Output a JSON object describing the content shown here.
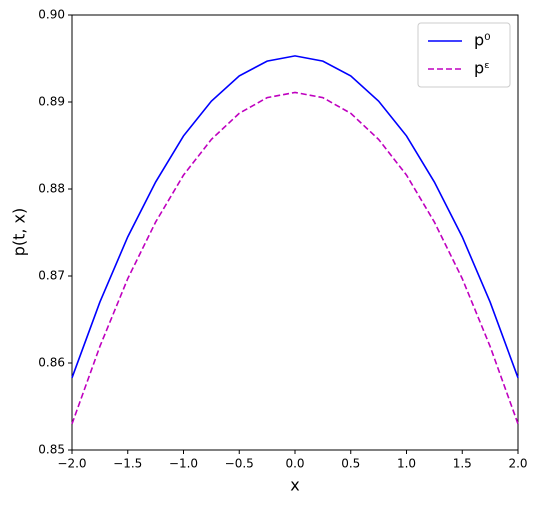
{
  "chart_data": {
    "type": "line",
    "xlabel": "x",
    "ylabel": "p(t, x)",
    "x": [
      -2,
      -1.75,
      -1.5,
      -1.25,
      -1,
      -0.75,
      -0.5,
      -0.25,
      0,
      0.25,
      0.5,
      0.75,
      1,
      1.25,
      1.5,
      1.75,
      2
    ],
    "series": [
      {
        "name": "p⁰",
        "color": "#0000ff",
        "style": "solid",
        "values": [
          0.8583,
          0.867,
          0.8745,
          0.8808,
          0.8861,
          0.8901,
          0.893,
          0.8947,
          0.8953,
          0.8947,
          0.893,
          0.8901,
          0.8861,
          0.8808,
          0.8745,
          0.867,
          0.8583
        ]
      },
      {
        "name": "pᵋ",
        "color": "#bf00bf",
        "style": "dashed",
        "values": [
          0.853,
          0.8619,
          0.8697,
          0.8762,
          0.8816,
          0.8857,
          0.8887,
          0.8905,
          0.8911,
          0.8905,
          0.8887,
          0.8857,
          0.8816,
          0.8762,
          0.8697,
          0.8619,
          0.853
        ]
      }
    ],
    "xlim": [
      -2,
      2
    ],
    "xticks": [
      {
        "value": -2,
        "label": "−2.0"
      },
      {
        "value": -1.5,
        "label": "−1.5"
      },
      {
        "value": -1,
        "label": "−1.0"
      },
      {
        "value": -0.5,
        "label": "−0.5"
      },
      {
        "value": 0,
        "label": "0.0"
      },
      0.5,
      {
        "value": 1,
        "label": "1.0"
      },
      1.5,
      {
        "value": 2,
        "label": "2.0"
      }
    ],
    "ylim": [
      0.85,
      0.9
    ],
    "yticks": [
      0.85,
      0.86,
      0.87,
      0.88,
      0.89,
      {
        "value": 0.9,
        "label": "0.90"
      }
    ],
    "legend": "upper right",
    "grid": false
  }
}
